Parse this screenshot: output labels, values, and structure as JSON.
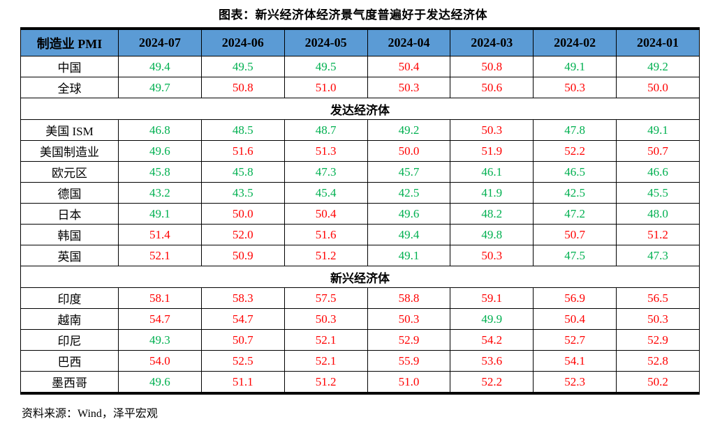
{
  "title": "图表：新兴经济体经济景气度普遍好于发达经济体",
  "source": "资料来源：Wind，泽平宏观",
  "colors": {
    "header_bg": "#5B9BD5",
    "above_50": "#FF0000",
    "below_50": "#00B050",
    "border": "#000000"
  },
  "chart_data": {
    "type": "table",
    "title": "图表：新兴经济体经济景气度普遍好于发达经济体",
    "columns": [
      "制造业 PMI",
      "2024-07",
      "2024-06",
      "2024-05",
      "2024-04",
      "2024-03",
      "2024-02",
      "2024-01"
    ],
    "value_color_rule": "value >= 50 shown red (#FF0000), value < 50 shown green (#00B050)",
    "rows": [
      {
        "label": "中国",
        "values": [
          49.4,
          49.5,
          49.5,
          50.4,
          50.8,
          49.1,
          49.2
        ]
      },
      {
        "label": "全球",
        "values": [
          49.7,
          50.8,
          51.0,
          50.3,
          50.6,
          50.3,
          50.0
        ]
      },
      {
        "section": "发达经济体"
      },
      {
        "label": "美国 ISM",
        "values": [
          46.8,
          48.5,
          48.7,
          49.2,
          50.3,
          47.8,
          49.1
        ]
      },
      {
        "label": "美国制造业",
        "values": [
          49.6,
          51.6,
          51.3,
          50.0,
          51.9,
          52.2,
          50.7
        ]
      },
      {
        "label": "欧元区",
        "values": [
          45.8,
          45.8,
          47.3,
          45.7,
          46.1,
          46.5,
          46.6
        ]
      },
      {
        "label": "德国",
        "values": [
          43.2,
          43.5,
          45.4,
          42.5,
          41.9,
          42.5,
          45.5
        ]
      },
      {
        "label": "日本",
        "values": [
          49.1,
          50.0,
          50.4,
          49.6,
          48.2,
          47.2,
          48.0
        ]
      },
      {
        "label": "韩国",
        "values": [
          51.4,
          52.0,
          51.6,
          49.4,
          49.8,
          50.7,
          51.2
        ]
      },
      {
        "label": "英国",
        "values": [
          52.1,
          50.9,
          51.2,
          49.1,
          50.3,
          47.5,
          47.3
        ]
      },
      {
        "section": "新兴经济体"
      },
      {
        "label": "印度",
        "values": [
          58.1,
          58.3,
          57.5,
          58.8,
          59.1,
          56.9,
          56.5
        ]
      },
      {
        "label": "越南",
        "values": [
          54.7,
          54.7,
          50.3,
          50.3,
          49.9,
          50.4,
          50.3
        ]
      },
      {
        "label": "印尼",
        "values": [
          49.3,
          50.7,
          52.1,
          52.9,
          54.2,
          52.7,
          52.9
        ]
      },
      {
        "label": "巴西",
        "values": [
          54.0,
          52.5,
          52.1,
          55.9,
          53.6,
          54.1,
          52.8
        ]
      },
      {
        "label": "墨西哥",
        "values": [
          49.6,
          51.1,
          51.2,
          51.0,
          52.2,
          52.3,
          50.2
        ]
      }
    ]
  }
}
